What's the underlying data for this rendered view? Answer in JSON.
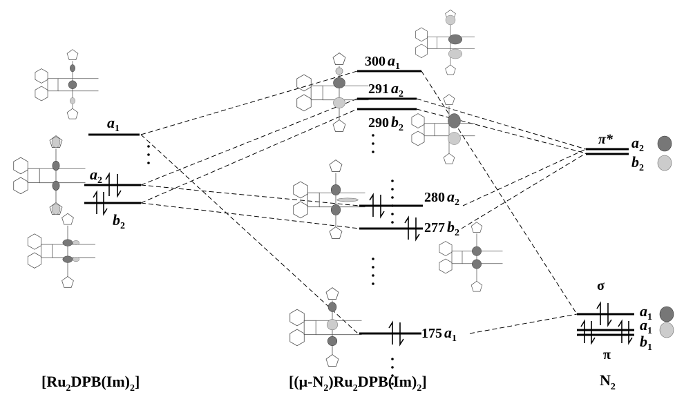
{
  "left": {
    "levels": [
      {
        "symbol": "a",
        "sub": "1"
      },
      {
        "symbol": "a",
        "sub": "2"
      },
      {
        "symbol": "b",
        "sub": "2"
      }
    ],
    "caption": [
      "[Ru",
      "2",
      "DPB(Im)",
      "2",
      "]"
    ]
  },
  "middle": {
    "levels": [
      {
        "index": 300,
        "symbol": "a",
        "sub": "1"
      },
      {
        "index": 291,
        "symbol": "a",
        "sub": "2"
      },
      {
        "index": 290,
        "symbol": "b",
        "sub": "2"
      },
      {
        "index": 280,
        "symbol": "a",
        "sub": "2"
      },
      {
        "index": 277,
        "symbol": "b",
        "sub": "2"
      },
      {
        "index": 175,
        "symbol": "a",
        "sub": "1"
      }
    ],
    "caption": [
      "[(μ-N",
      "2",
      ")Ru",
      "2",
      "DPB(Im)",
      "2",
      "]"
    ]
  },
  "right": {
    "pi_star": "π*",
    "sigma": "σ",
    "pi": "π",
    "levels": [
      {
        "symbol": "a",
        "sub": "2"
      },
      {
        "symbol": "b",
        "sub": "2"
      },
      {
        "symbol": "a",
        "sub": "1"
      },
      {
        "symbol": "a",
        "sub": "1"
      },
      {
        "symbol": "b",
        "sub": "1"
      }
    ],
    "caption": [
      "N",
      "2"
    ]
  }
}
